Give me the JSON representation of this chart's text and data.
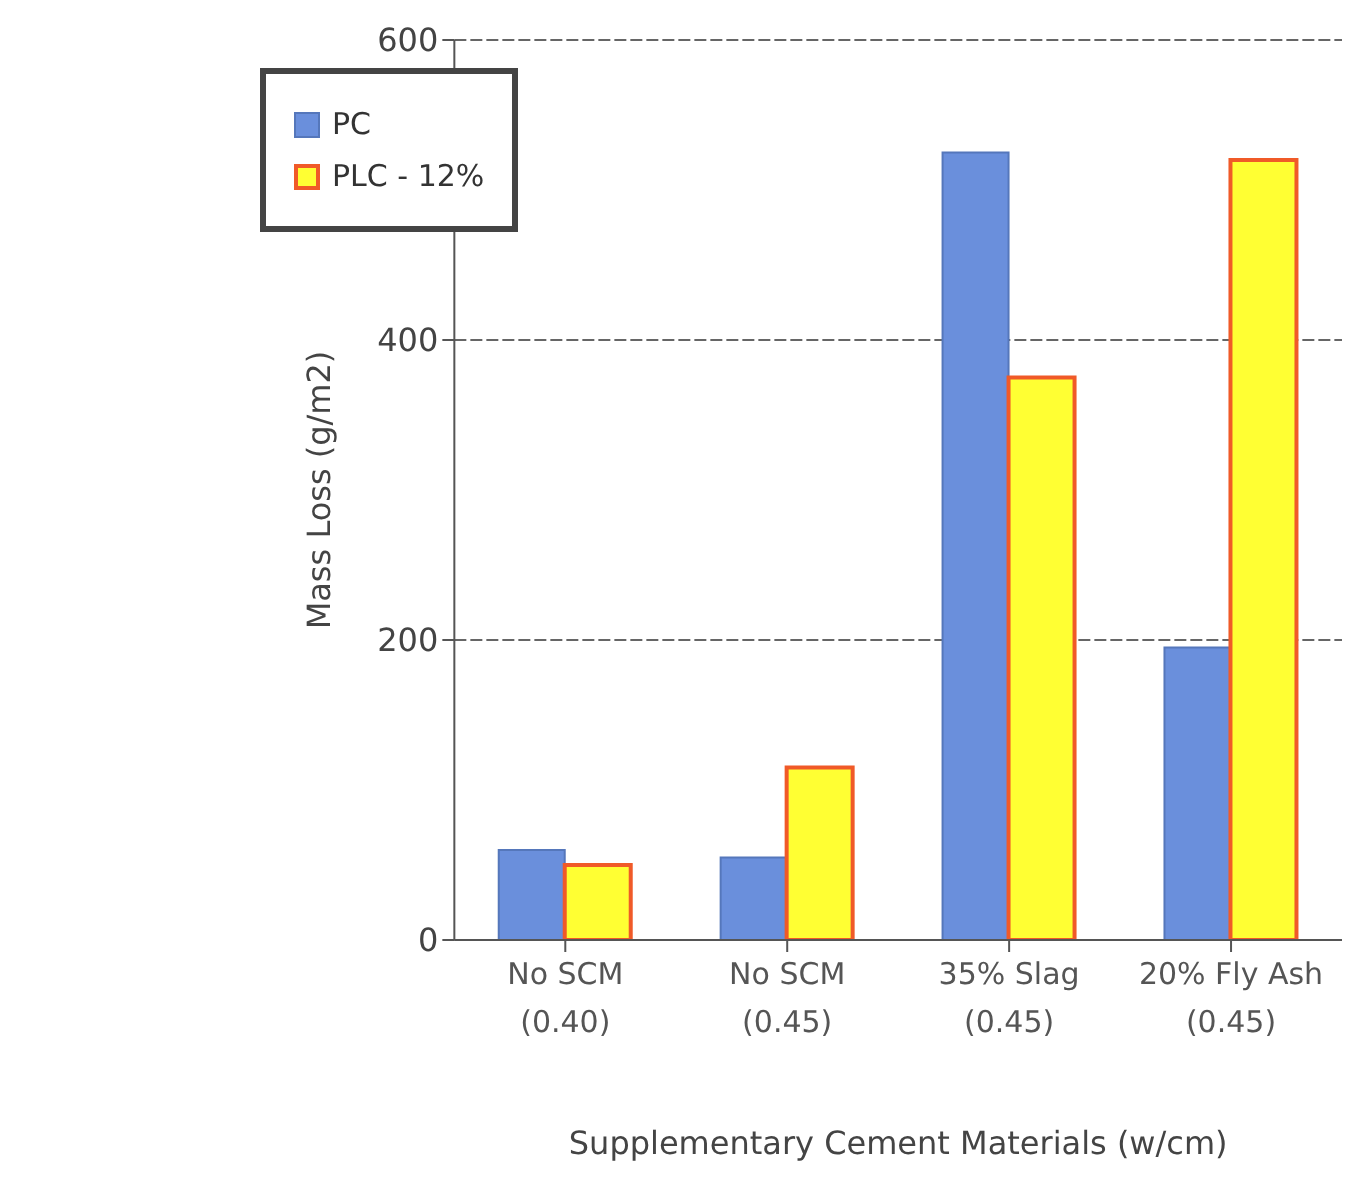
{
  "chart_data": {
    "type": "bar",
    "xlabel": "Supplementary Cement Materials (w/cm)",
    "ylabel": "Mass Loss (g/m2)",
    "categories": [
      "No SCM\n(0.40)",
      "No SCM\n(0.45)",
      "35% Slag\n(0.45)",
      "20% Fly Ash\n(0.45)"
    ],
    "series": [
      {
        "name": "PC",
        "color": "#6a8fdc",
        "values": [
          60,
          55,
          525,
          195
        ]
      },
      {
        "name": "PLC - 12%",
        "color": "#ffff33",
        "values": [
          50,
          115,
          375,
          520
        ]
      }
    ],
    "ylim": [
      0,
      600
    ],
    "yticks": [
      0,
      200,
      400,
      600
    ],
    "grid": "y",
    "legend": "top left"
  }
}
